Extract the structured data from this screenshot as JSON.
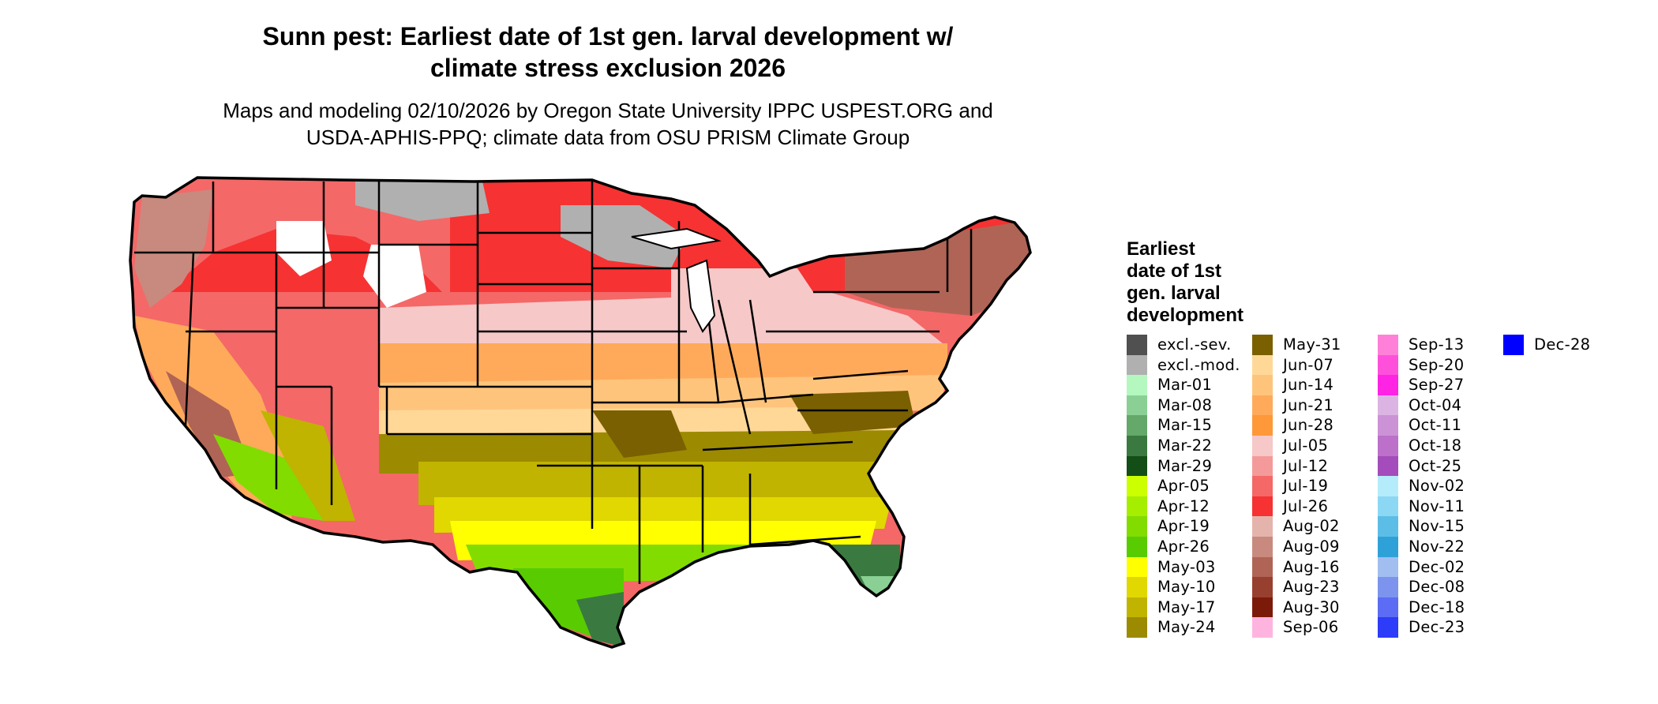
{
  "title_line1": "Sunn pest: Earliest date of 1st gen. larval development w/",
  "title_line2": "climate stress exclusion 2026",
  "subtitle_line1": "Maps and modeling 02/10/2026 by Oregon State University IPPC USPEST.ORG and",
  "subtitle_line2": "USDA-APHIS-PPQ; climate data from OSU PRISM Climate Group",
  "legend": {
    "title_lines": [
      "Earliest",
      "date of 1st",
      "gen. larval",
      "development"
    ],
    "columns": [
      [
        {
          "label": "excl.-sev.",
          "color": "#505050"
        },
        {
          "label": "excl.-mod.",
          "color": "#b0b0b0"
        },
        {
          "label": "Mar-01",
          "color": "#b4f8c0"
        },
        {
          "label": "Mar-08",
          "color": "#8ad094"
        },
        {
          "label": "Mar-15",
          "color": "#64a86a"
        },
        {
          "label": "Mar-22",
          "color": "#3a7a40"
        },
        {
          "label": "Mar-29",
          "color": "#124e16"
        },
        {
          "label": "Apr-05",
          "color": "#ccff00"
        },
        {
          "label": "Apr-12",
          "color": "#a6ee00"
        },
        {
          "label": "Apr-19",
          "color": "#82dc00"
        },
        {
          "label": "Apr-26",
          "color": "#58cc00"
        },
        {
          "label": "May-03",
          "color": "#ffff00"
        },
        {
          "label": "May-10",
          "color": "#e0d800"
        },
        {
          "label": "May-17",
          "color": "#c0b400"
        },
        {
          "label": "May-24",
          "color": "#9c8a00"
        }
      ],
      [
        {
          "label": "May-31",
          "color": "#7a6000"
        },
        {
          "label": "Jun-07",
          "color": "#ffd898"
        },
        {
          "label": "Jun-14",
          "color": "#ffc47c"
        },
        {
          "label": "Jun-21",
          "color": "#ffaa5a"
        },
        {
          "label": "Jun-28",
          "color": "#ff9838"
        },
        {
          "label": "Jul-05",
          "color": "#f6c8c8"
        },
        {
          "label": "Jul-12",
          "color": "#f49a9a"
        },
        {
          "label": "Jul-19",
          "color": "#f46868"
        },
        {
          "label": "Jul-26",
          "color": "#f63232"
        },
        {
          "label": "Aug-02",
          "color": "#e4b4ac"
        },
        {
          "label": "Aug-09",
          "color": "#c88a7e"
        },
        {
          "label": "Aug-16",
          "color": "#b06456"
        },
        {
          "label": "Aug-23",
          "color": "#984030"
        },
        {
          "label": "Aug-30",
          "color": "#7c1a0a"
        },
        {
          "label": "Sep-06",
          "color": "#ffb4e0"
        }
      ],
      [
        {
          "label": "Sep-13",
          "color": "#ff80d8"
        },
        {
          "label": "Sep-20",
          "color": "#ff50dc"
        },
        {
          "label": "Sep-27",
          "color": "#ff24e4"
        },
        {
          "label": "Oct-04",
          "color": "#dcb4e4"
        },
        {
          "label": "Oct-11",
          "color": "#cc92d6"
        },
        {
          "label": "Oct-18",
          "color": "#bc70ca"
        },
        {
          "label": "Oct-25",
          "color": "#a44cbc"
        },
        {
          "label": "Nov-02",
          "color": "#b4ecfc"
        },
        {
          "label": "Nov-11",
          "color": "#8cd8f4"
        },
        {
          "label": "Nov-15",
          "color": "#5cbee6"
        },
        {
          "label": "Nov-22",
          "color": "#2ea2d8"
        },
        {
          "label": "Dec-02",
          "color": "#a2bef0"
        },
        {
          "label": "Dec-08",
          "color": "#7c94ee"
        },
        {
          "label": "Dec-18",
          "color": "#5c6cf4"
        },
        {
          "label": "Dec-23",
          "color": "#2c3cf8"
        }
      ],
      [
        {
          "label": "Dec-28",
          "color": "#0000ff"
        }
      ]
    ]
  }
}
